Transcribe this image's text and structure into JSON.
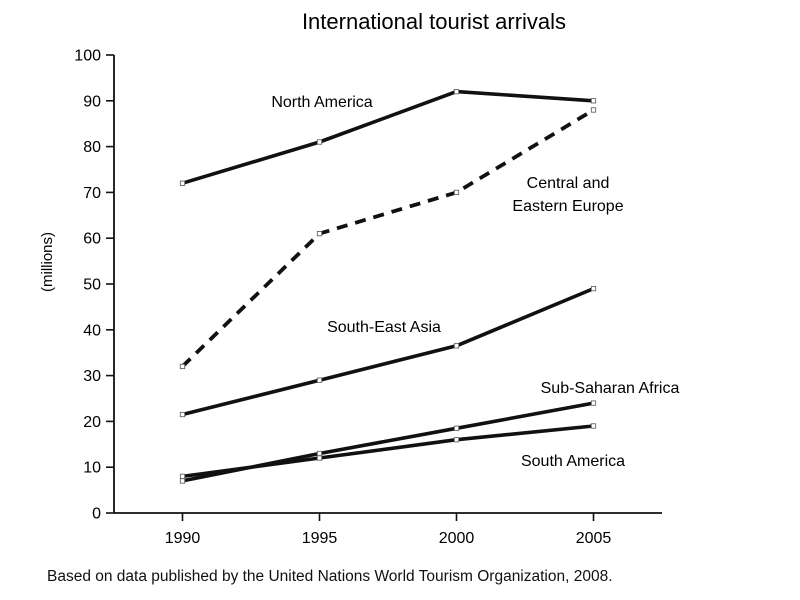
{
  "chart_data": {
    "type": "line",
    "title": "International tourist arrivals",
    "xlabel": "",
    "ylabel": "(millions)",
    "x": [
      1990,
      1995,
      2000,
      2005
    ],
    "xticks": [
      "1990",
      "1995",
      "2000",
      "2005"
    ],
    "yticks": [
      "0",
      "10",
      "20",
      "30",
      "40",
      "50",
      "60",
      "70",
      "80",
      "90",
      "100"
    ],
    "ylim": [
      0,
      100
    ],
    "xlim": [
      1987.5,
      2007.5
    ],
    "grid": false,
    "legend": "none",
    "series": [
      {
        "name": "North America",
        "values": [
          72,
          81,
          92,
          90
        ],
        "style": "solid"
      },
      {
        "name": "Central and Eastern Europe",
        "label_lines": [
          "Central and",
          "Eastern Europe"
        ],
        "values": [
          32,
          61,
          70,
          88
        ],
        "style": "dashed"
      },
      {
        "name": "South-East Asia",
        "values": [
          21.5,
          29,
          36.5,
          49
        ],
        "style": "solid"
      },
      {
        "name": "Sub-Saharan Africa",
        "values": [
          7,
          13,
          18.5,
          24
        ],
        "style": "solid"
      },
      {
        "name": "South America",
        "values": [
          8,
          12,
          16,
          19
        ],
        "style": "solid"
      }
    ]
  },
  "source_note": "Based on data published by the United Nations World Tourism Organization, 2008."
}
